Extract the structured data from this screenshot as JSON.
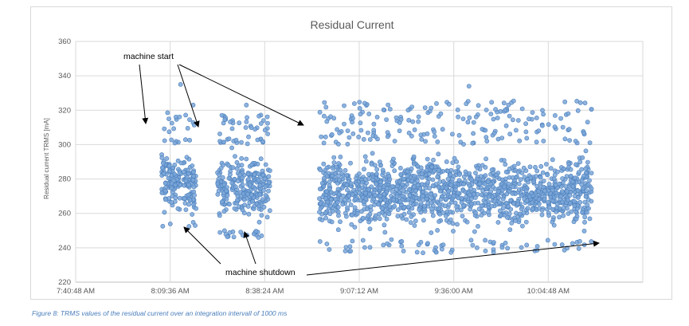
{
  "chart_data": {
    "type": "scatter",
    "title": "Residual Current",
    "xlabel": "",
    "ylabel": "Residual current TRMS [mA]",
    "ylim": [
      220,
      360
    ],
    "yticks": [
      220,
      240,
      260,
      280,
      300,
      320,
      340,
      360
    ],
    "xlim": [
      "7:40:48 AM",
      "10:33:36 AM"
    ],
    "xticks": [
      "7:40:48 AM",
      "8:09:36 AM",
      "8:38:24 AM",
      "9:07:12 AM",
      "9:36:00 AM",
      "10:04:48 AM"
    ],
    "grid": true,
    "series": [
      {
        "values_description_segments": [
          {
            "start": "8:07:00 AM",
            "end": "8:17:30 AM",
            "y_min": 250,
            "y_max": 335,
            "y_typical": [
              255,
              300
            ]
          },
          {
            "start": "8:24:00 AM",
            "end": "8:40:00 AM",
            "y_min": 246,
            "y_max": 323,
            "y_typical": [
              250,
              300
            ]
          },
          {
            "start": "8:55:00 AM",
            "end": "10:18:00 AM",
            "y_min": 237,
            "y_max": 334,
            "y_typical": [
              245,
              300
            ]
          }
        ]
      }
    ],
    "annotations": [
      "machine start",
      "machine shutdown"
    ]
  },
  "caption": "Figure 8: TRMS values of the residual current over an integration intervall of 1000 ms"
}
